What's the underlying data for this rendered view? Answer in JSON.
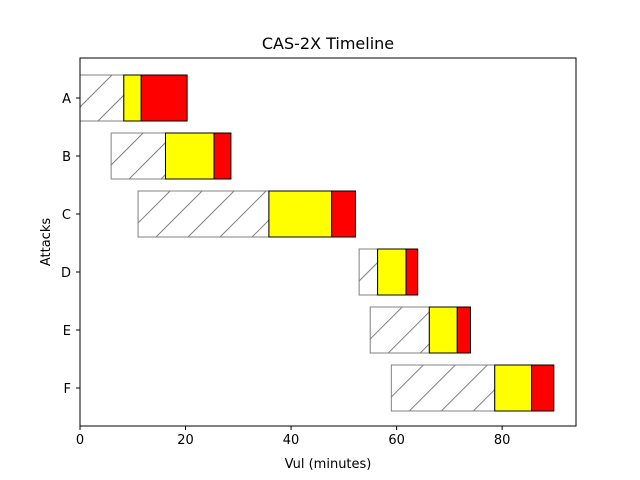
{
  "colors": {
    "background": "#ffffff",
    "axis": "#000000",
    "hatch_outline": "#808080",
    "yellow": "#ffff00",
    "red": "#ff0000"
  },
  "chart_data": {
    "type": "bar",
    "orientation": "horizontal-stacked",
    "title": "CAS-2X Timeline",
    "xlabel": "Vul (minutes)",
    "ylabel": "Attacks",
    "xlim": [
      0,
      94
    ],
    "xticks": [
      0,
      20,
      40,
      60,
      80
    ],
    "xtick_labels": [
      "0",
      "20",
      "40",
      "60",
      "80"
    ],
    "grid": false,
    "categories": [
      "A",
      "B",
      "C",
      "D",
      "E",
      "F"
    ],
    "segments": [
      {
        "category": "A",
        "hatched": [
          0.0,
          8.3
        ],
        "yellow": [
          8.3,
          11.6
        ],
        "red": [
          11.6,
          20.3
        ]
      },
      {
        "category": "B",
        "hatched": [
          5.9,
          16.2
        ],
        "yellow": [
          16.2,
          25.4
        ],
        "red": [
          25.4,
          28.6
        ]
      },
      {
        "category": "C",
        "hatched": [
          11.0,
          35.8
        ],
        "yellow": [
          35.8,
          47.7
        ],
        "red": [
          47.7,
          52.2
        ]
      },
      {
        "category": "D",
        "hatched": [
          52.9,
          56.4
        ],
        "yellow": [
          56.4,
          61.8
        ],
        "red": [
          61.8,
          64.0
        ]
      },
      {
        "category": "E",
        "hatched": [
          55.0,
          66.2
        ],
        "yellow": [
          66.2,
          71.5
        ],
        "red": [
          71.5,
          74.0
        ]
      },
      {
        "category": "F",
        "hatched": [
          59.0,
          78.6
        ],
        "yellow": [
          78.6,
          85.6
        ],
        "red": [
          85.6,
          89.8
        ]
      }
    ]
  }
}
